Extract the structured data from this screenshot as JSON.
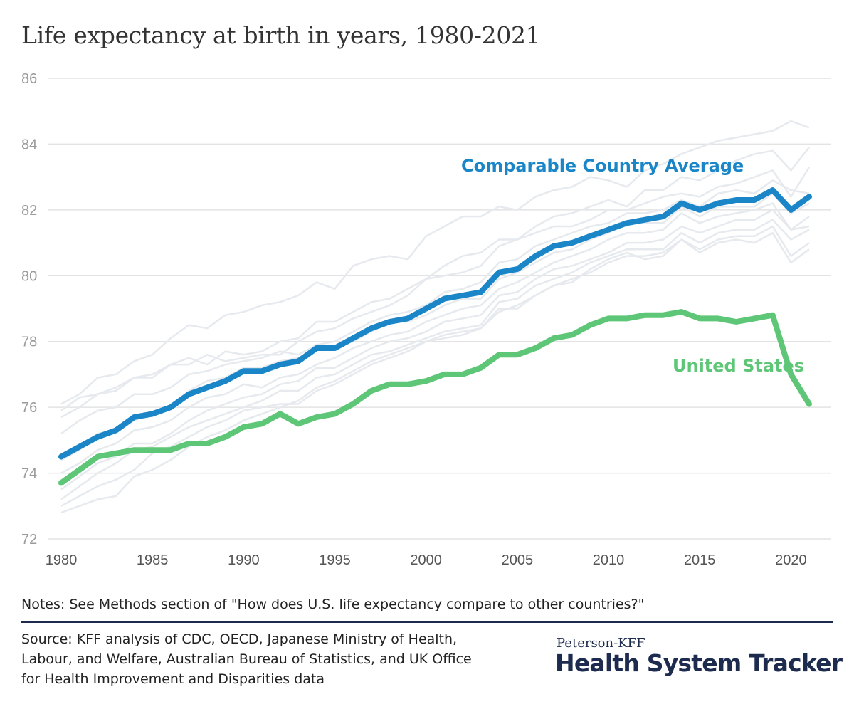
{
  "title": "Life expectancy at birth in years, 1980-2021",
  "notes": "Notes: See Methods section of \"How does U.S. life expectancy compare to other countries?\"",
  "source": "Source: KFF analysis of CDC, OECD, Japanese Ministry of Health, Labour, and Welfare, Australian Bureau of Statistics, and UK Office for Health Improvement and Disparities data",
  "branding": {
    "top": "Peterson-KFF",
    "main": "Health System Tracker"
  },
  "colors": {
    "comparable": "#1a86c8",
    "us": "#5ec677",
    "background_countries": "#e6eaee",
    "grid": "#e3e3e3"
  },
  "chart_data": {
    "type": "line",
    "ylim": [
      72,
      86
    ],
    "yticks": [
      72,
      74,
      76,
      78,
      80,
      82,
      84,
      86
    ],
    "xticks": [
      1980,
      1985,
      1990,
      1995,
      2000,
      2005,
      2010,
      2015,
      2020
    ],
    "grid": true,
    "x": [
      1980,
      1981,
      1982,
      1983,
      1984,
      1985,
      1986,
      1987,
      1988,
      1989,
      1990,
      1991,
      1992,
      1993,
      1994,
      1995,
      1996,
      1997,
      1998,
      1999,
      2000,
      2001,
      2002,
      2003,
      2004,
      2005,
      2006,
      2007,
      2008,
      2009,
      2010,
      2011,
      2012,
      2013,
      2014,
      2015,
      2016,
      2017,
      2018,
      2019,
      2020,
      2021
    ],
    "series": [
      {
        "name": "Comparable Country Average",
        "values": [
          74.5,
          74.8,
          75.1,
          75.3,
          75.7,
          75.8,
          76.0,
          76.4,
          76.6,
          76.8,
          77.1,
          77.1,
          77.3,
          77.4,
          77.8,
          77.8,
          78.1,
          78.4,
          78.6,
          78.7,
          79.0,
          79.3,
          79.4,
          79.5,
          80.1,
          80.2,
          80.6,
          80.9,
          81.0,
          81.2,
          81.4,
          81.6,
          81.7,
          81.8,
          82.2,
          82.0,
          82.2,
          82.3,
          82.3,
          82.6,
          82.0,
          82.4
        ]
      },
      {
        "name": "United States",
        "values": [
          73.7,
          74.1,
          74.5,
          74.6,
          74.7,
          74.7,
          74.7,
          74.9,
          74.9,
          75.1,
          75.4,
          75.5,
          75.8,
          75.5,
          75.7,
          75.8,
          76.1,
          76.5,
          76.7,
          76.7,
          76.8,
          77.0,
          77.0,
          77.2,
          77.6,
          77.6,
          77.8,
          78.1,
          78.2,
          78.5,
          78.7,
          78.7,
          78.8,
          78.8,
          78.9,
          78.7,
          78.7,
          78.6,
          78.7,
          78.8,
          77.0,
          76.1
        ]
      }
    ],
    "background_series": [
      {
        "values": [
          76.1,
          76.4,
          76.9,
          77.0,
          77.4,
          77.6,
          78.1,
          78.5,
          78.4,
          78.8,
          78.9,
          79.1,
          79.2,
          79.4,
          79.8,
          79.6,
          80.3,
          80.5,
          80.6,
          80.5,
          81.2,
          81.5,
          81.8,
          81.8,
          82.1,
          82.0,
          82.4,
          82.6,
          82.7,
          83.0,
          82.9,
          82.7,
          83.2,
          83.4,
          83.7,
          83.9,
          84.1,
          84.2,
          84.3,
          84.4,
          84.7,
          84.5
        ]
      },
      {
        "values": [
          75.9,
          76.3,
          76.4,
          76.6,
          76.9,
          76.9,
          77.3,
          77.5,
          77.3,
          77.7,
          77.6,
          77.7,
          78.0,
          78.1,
          78.6,
          78.6,
          78.9,
          79.2,
          79.3,
          79.6,
          79.9,
          80.3,
          80.6,
          80.7,
          81.1,
          81.1,
          81.5,
          81.8,
          81.9,
          82.1,
          82.3,
          82.1,
          82.6,
          82.6,
          83.0,
          82.9,
          83.2,
          83.5,
          83.7,
          83.8,
          83.2,
          83.9
        ]
      },
      {
        "values": [
          75.7,
          76.0,
          76.4,
          76.5,
          76.9,
          77.0,
          77.3,
          77.3,
          77.6,
          77.4,
          77.5,
          77.6,
          77.6,
          78.0,
          78.3,
          78.4,
          78.7,
          78.9,
          79.1,
          79.4,
          79.9,
          80.0,
          80.1,
          80.3,
          80.9,
          81.1,
          81.3,
          81.5,
          81.5,
          81.7,
          82.0,
          82.0,
          82.2,
          82.4,
          82.5,
          82.4,
          82.7,
          82.8,
          83.0,
          83.2,
          82.4,
          83.3
        ]
      },
      {
        "values": [
          75.2,
          75.6,
          75.9,
          76.0,
          76.4,
          76.4,
          76.6,
          77.0,
          77.1,
          77.3,
          77.4,
          77.5,
          77.7,
          77.6,
          77.9,
          78.0,
          78.3,
          78.6,
          78.8,
          78.9,
          79.1,
          79.5,
          79.6,
          79.8,
          80.4,
          80.5,
          80.9,
          81.1,
          81.3,
          81.5,
          81.6,
          81.9,
          81.9,
          82.0,
          82.3,
          82.1,
          82.5,
          82.6,
          82.5,
          82.9,
          82.6,
          82.5
        ]
      },
      {
        "values": [
          74.4,
          74.7,
          75.2,
          75.3,
          75.6,
          75.8,
          76.0,
          76.5,
          76.8,
          76.9,
          77.2,
          77.2,
          77.4,
          77.5,
          77.8,
          77.8,
          78.0,
          78.3,
          78.6,
          78.6,
          78.8,
          79.1,
          79.3,
          79.3,
          79.9,
          80.1,
          80.4,
          80.7,
          80.8,
          81.1,
          81.3,
          81.6,
          81.6,
          81.6,
          82.1,
          81.8,
          82.1,
          82.1,
          82.1,
          82.5,
          81.9,
          82.2
        ]
      },
      {
        "values": [
          74.0,
          74.3,
          74.7,
          74.9,
          75.3,
          75.4,
          75.6,
          76.0,
          76.3,
          76.4,
          76.7,
          76.6,
          76.9,
          77.0,
          77.3,
          77.5,
          77.8,
          78.0,
          78.2,
          78.3,
          78.6,
          78.8,
          79.0,
          79.1,
          79.6,
          79.8,
          80.1,
          80.4,
          80.6,
          80.8,
          81.1,
          81.3,
          81.3,
          81.4,
          81.9,
          81.6,
          81.8,
          81.9,
          82.0,
          82.2,
          81.4,
          81.8
        ]
      },
      {
        "values": [
          73.5,
          73.9,
          74.3,
          74.5,
          74.9,
          74.9,
          75.2,
          75.6,
          75.9,
          76.1,
          76.3,
          76.4,
          76.7,
          76.8,
          77.2,
          77.2,
          77.5,
          77.8,
          78.0,
          78.1,
          78.3,
          78.6,
          78.7,
          78.8,
          79.4,
          79.5,
          79.9,
          80.2,
          80.3,
          80.5,
          80.7,
          81.0,
          81.0,
          81.1,
          81.5,
          81.3,
          81.5,
          81.7,
          81.7,
          82.0,
          81.4,
          81.5
        ]
      },
      {
        "values": [
          73.2,
          73.6,
          74.0,
          74.3,
          74.7,
          74.8,
          75.1,
          75.4,
          75.6,
          75.8,
          76.0,
          76.2,
          76.5,
          76.5,
          76.9,
          77.0,
          77.3,
          77.6,
          77.7,
          77.9,
          78.1,
          78.3,
          78.4,
          78.5,
          79.2,
          79.3,
          79.7,
          79.9,
          80.1,
          80.4,
          80.6,
          80.8,
          80.8,
          80.8,
          81.3,
          81.0,
          81.3,
          81.4,
          81.4,
          81.7,
          81.1,
          81.4
        ]
      },
      {
        "values": [
          73.0,
          73.3,
          73.6,
          73.8,
          74.1,
          74.6,
          74.8,
          75.1,
          75.4,
          75.6,
          75.9,
          76.0,
          76.1,
          76.1,
          76.5,
          76.7,
          77.0,
          77.3,
          77.5,
          77.7,
          78.0,
          78.2,
          78.3,
          78.4,
          78.9,
          79.1,
          79.4,
          79.7,
          79.9,
          80.1,
          80.4,
          80.6,
          80.6,
          80.7,
          81.1,
          80.8,
          81.1,
          81.2,
          81.2,
          81.5,
          80.6,
          81.0
        ]
      },
      {
        "values": [
          72.8,
          73.0,
          73.2,
          73.3,
          73.9,
          74.1,
          74.4,
          74.8,
          75.1,
          75.3,
          75.6,
          75.8,
          76.0,
          76.2,
          76.6,
          76.8,
          77.1,
          77.4,
          77.6,
          77.8,
          78.0,
          78.1,
          78.2,
          78.4,
          79.0,
          79.0,
          79.4,
          79.7,
          79.8,
          80.2,
          80.5,
          80.7,
          80.5,
          80.6,
          81.1,
          80.7,
          81.0,
          81.1,
          81.0,
          81.3,
          80.4,
          80.8
        ]
      }
    ]
  }
}
